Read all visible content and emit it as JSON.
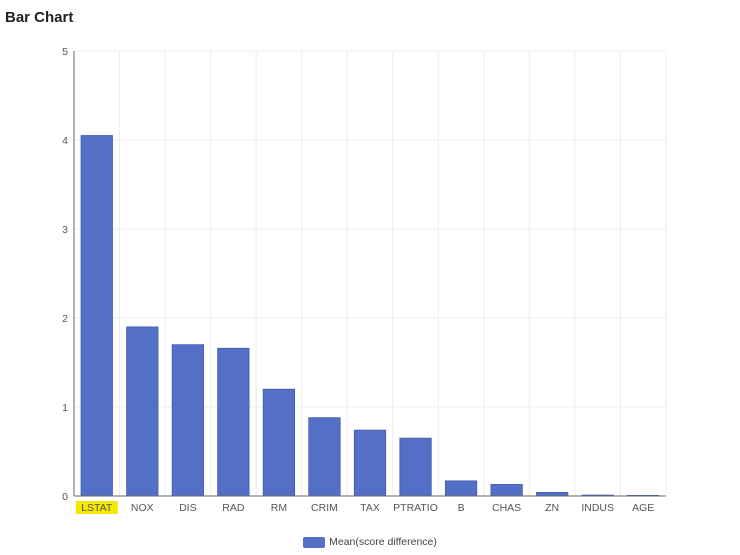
{
  "page": {
    "title": "Bar Chart"
  },
  "chart_data": {
    "type": "bar",
    "categories": [
      "LSTAT",
      "NOX",
      "DIS",
      "RAD",
      "RM",
      "CRIM",
      "TAX",
      "PTRATIO",
      "B",
      "CHAS",
      "ZN",
      "INDUS",
      "AGE"
    ],
    "series": [
      {
        "name": "Mean(score difference)",
        "values": [
          4.05,
          1.9,
          1.7,
          1.66,
          1.2,
          0.88,
          0.74,
          0.65,
          0.17,
          0.13,
          0.04,
          0.01,
          0.005
        ]
      }
    ],
    "ylim": [
      0,
      5
    ],
    "yticks": [
      0,
      1,
      2,
      3,
      4,
      5
    ],
    "grid": true,
    "legend_position": "bottom",
    "highlighted_category": "LSTAT",
    "colors": {
      "bar": "#5470c6",
      "bar_stroke": "#3f5ab0",
      "highlight": "#f6e700",
      "grid": "#ececec",
      "axis": "#666666"
    }
  }
}
